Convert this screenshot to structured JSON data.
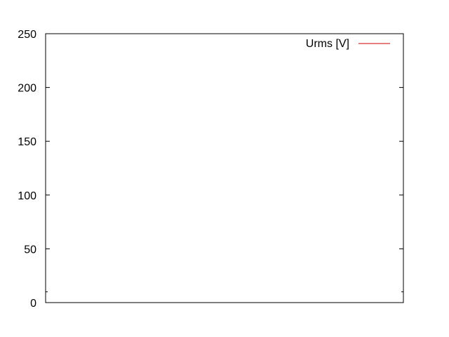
{
  "chart_data": {
    "type": "line",
    "title": "",
    "xlabel": "",
    "ylabel": "",
    "ylim": [
      0,
      250
    ],
    "yticks": [
      {
        "value": 0,
        "label": "0"
      },
      {
        "value": 50,
        "label": "50"
      },
      {
        "value": 100,
        "label": "100"
      },
      {
        "value": 150,
        "label": "150"
      },
      {
        "value": 200,
        "label": "200"
      },
      {
        "value": 250,
        "label": "250"
      }
    ],
    "minor_ytick_values": [
      10
    ],
    "xticks": [],
    "grid": false,
    "legend_position": "top-right",
    "series": [
      {
        "name": "Urms [V]",
        "color": "#cc0000",
        "x": [],
        "y": []
      }
    ]
  }
}
